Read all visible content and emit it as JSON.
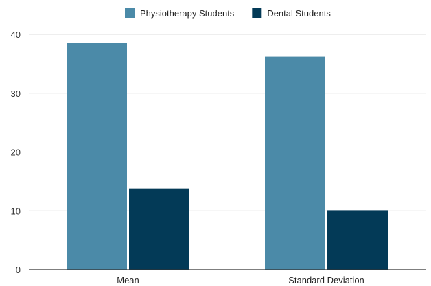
{
  "chart_data": {
    "type": "bar",
    "categories": [
      "Mean",
      "Standard Deviation"
    ],
    "series": [
      {
        "name": "Physiotherapy Students",
        "values": [
          38.5,
          36.2
        ],
        "color": "#4b8aa8"
      },
      {
        "name": "Dental Students",
        "values": [
          13.8,
          10.1
        ],
        "color": "#033a57"
      }
    ],
    "ylim": [
      0,
      40
    ],
    "yticks": [
      0,
      10,
      20,
      30,
      40
    ],
    "grid": true,
    "legend": "top-center",
    "title": "",
    "xlabel": "",
    "ylabel": ""
  }
}
